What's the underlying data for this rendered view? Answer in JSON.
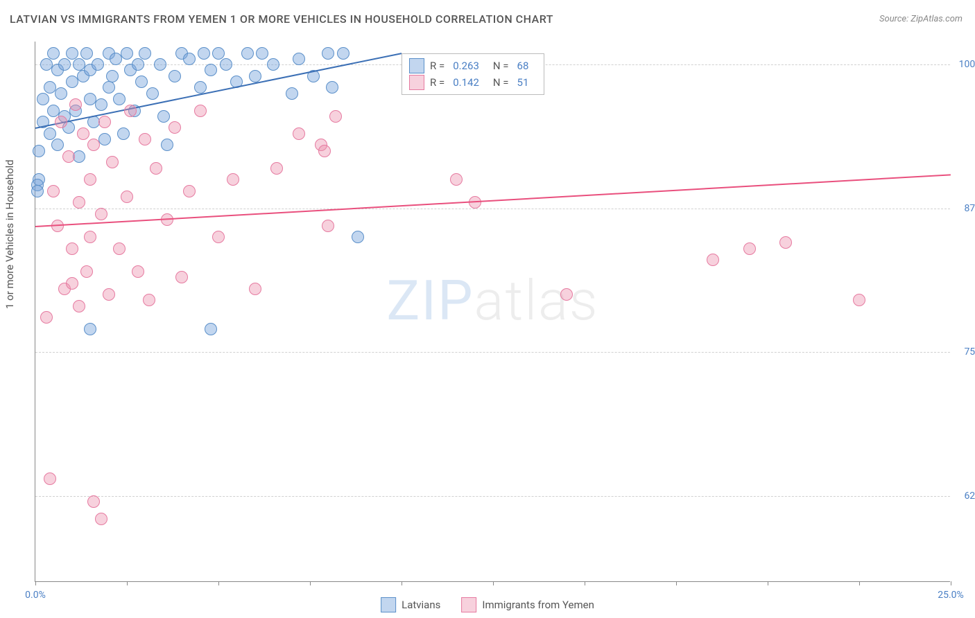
{
  "title": "LATVIAN VS IMMIGRANTS FROM YEMEN 1 OR MORE VEHICLES IN HOUSEHOLD CORRELATION CHART",
  "source": "Source: ZipAtlas.com",
  "y_axis_label": "1 or more Vehicles in Household",
  "watermark": {
    "part1": "ZIP",
    "part2": "atlas"
  },
  "chart": {
    "type": "scatter",
    "background_color": "#ffffff",
    "grid_color": "#d0d0d0",
    "axis_color": "#888888",
    "tick_label_color": "#4a7fc4",
    "text_color": "#555555",
    "xlim": [
      0,
      25
    ],
    "ylim": [
      55,
      102
    ],
    "y_ticks": [
      62.5,
      75.0,
      87.5,
      100.0
    ],
    "y_tick_labels": [
      "62.5%",
      "75.0%",
      "87.5%",
      "100.0%"
    ],
    "x_ticks": [
      0,
      2.5,
      5,
      7.5,
      10,
      12.5,
      15,
      17.5,
      20,
      22.5,
      25
    ],
    "x_tick_labels_show": {
      "0": "0.0%",
      "25": "25.0%"
    },
    "point_radius": 9,
    "series": [
      {
        "name": "Latvians",
        "color_fill": "rgba(120,165,220,0.45)",
        "color_stroke": "#5a8fc9",
        "r_value": "0.263",
        "n_value": "68",
        "trend": {
          "x1": 0,
          "y1": 94.5,
          "x2": 10,
          "y2": 101,
          "color": "#3b6fb5"
        },
        "points": [
          [
            0.1,
            92.5
          ],
          [
            0.1,
            90
          ],
          [
            0.2,
            97
          ],
          [
            0.2,
            95
          ],
          [
            0.3,
            100
          ],
          [
            0.4,
            98
          ],
          [
            0.4,
            94
          ],
          [
            0.5,
            101
          ],
          [
            0.5,
            96
          ],
          [
            0.6,
            93
          ],
          [
            0.6,
            99.5
          ],
          [
            0.7,
            97.5
          ],
          [
            0.8,
            100
          ],
          [
            0.8,
            95.5
          ],
          [
            0.9,
            94.5
          ],
          [
            1.0,
            101
          ],
          [
            1.0,
            98.5
          ],
          [
            1.1,
            96
          ],
          [
            1.2,
            100
          ],
          [
            1.2,
            92
          ],
          [
            1.3,
            99
          ],
          [
            1.4,
            101
          ],
          [
            1.5,
            97
          ],
          [
            1.5,
            99.5
          ],
          [
            1.6,
            95
          ],
          [
            1.7,
            100
          ],
          [
            1.8,
            96.5
          ],
          [
            1.9,
            93.5
          ],
          [
            2.0,
            101
          ],
          [
            2.0,
            98
          ],
          [
            2.1,
            99
          ],
          [
            2.2,
            100.5
          ],
          [
            2.3,
            97
          ],
          [
            2.4,
            94
          ],
          [
            2.5,
            101
          ],
          [
            2.6,
            99.5
          ],
          [
            2.7,
            96
          ],
          [
            2.8,
            100
          ],
          [
            2.9,
            98.5
          ],
          [
            3.0,
            101
          ],
          [
            3.2,
            97.5
          ],
          [
            3.4,
            100
          ],
          [
            3.5,
            95.5
          ],
          [
            3.6,
            93
          ],
          [
            3.8,
            99
          ],
          [
            4.0,
            101
          ],
          [
            4.2,
            100.5
          ],
          [
            4.5,
            98
          ],
          [
            4.6,
            101
          ],
          [
            4.8,
            99.5
          ],
          [
            5.0,
            101
          ],
          [
            5.2,
            100
          ],
          [
            5.5,
            98.5
          ],
          [
            5.8,
            101
          ],
          [
            6.0,
            99
          ],
          [
            6.2,
            101
          ],
          [
            6.5,
            100
          ],
          [
            7.0,
            97.5
          ],
          [
            7.2,
            100.5
          ],
          [
            7.6,
            99
          ],
          [
            8.0,
            101
          ],
          [
            8.1,
            98
          ],
          [
            8.4,
            101
          ],
          [
            1.5,
            77
          ],
          [
            4.8,
            77
          ],
          [
            8.8,
            85
          ],
          [
            0.05,
            89.5
          ],
          [
            0.05,
            89
          ]
        ]
      },
      {
        "name": "Immigrants from Yemen",
        "color_fill": "rgba(235,140,170,0.40)",
        "color_stroke": "#e67aa0",
        "r_value": "0.142",
        "n_value": "51",
        "trend": {
          "x1": 0,
          "y1": 86,
          "x2": 25,
          "y2": 90.5,
          "color": "#e94f7d"
        },
        "points": [
          [
            0.3,
            78
          ],
          [
            0.4,
            64
          ],
          [
            0.5,
            89
          ],
          [
            0.6,
            86
          ],
          [
            0.7,
            95
          ],
          [
            0.8,
            80.5
          ],
          [
            0.9,
            92
          ],
          [
            1.0,
            84
          ],
          [
            1.0,
            81
          ],
          [
            1.1,
            96.5
          ],
          [
            1.2,
            88
          ],
          [
            1.2,
            79
          ],
          [
            1.3,
            94
          ],
          [
            1.4,
            82
          ],
          [
            1.5,
            90
          ],
          [
            1.5,
            85
          ],
          [
            1.6,
            62
          ],
          [
            1.6,
            93
          ],
          [
            1.8,
            87
          ],
          [
            1.8,
            60.5
          ],
          [
            1.9,
            95
          ],
          [
            2.0,
            80
          ],
          [
            2.1,
            91.5
          ],
          [
            2.3,
            84
          ],
          [
            2.5,
            88.5
          ],
          [
            2.6,
            96
          ],
          [
            2.8,
            82
          ],
          [
            3.0,
            93.5
          ],
          [
            3.1,
            79.5
          ],
          [
            3.3,
            91
          ],
          [
            3.6,
            86.5
          ],
          [
            3.8,
            94.5
          ],
          [
            4.0,
            81.5
          ],
          [
            4.2,
            89
          ],
          [
            4.5,
            96
          ],
          [
            5.0,
            85
          ],
          [
            5.4,
            90
          ],
          [
            6.0,
            80.5
          ],
          [
            6.6,
            91
          ],
          [
            7.2,
            94
          ],
          [
            7.8,
            93
          ],
          [
            8.0,
            86
          ],
          [
            8.2,
            95.5
          ],
          [
            7.9,
            92.5
          ],
          [
            12.0,
            88
          ],
          [
            11.5,
            90
          ],
          [
            14.5,
            80
          ],
          [
            18.5,
            83
          ],
          [
            20.5,
            84.5
          ],
          [
            19.5,
            84
          ],
          [
            22.5,
            79.5
          ]
        ]
      }
    ]
  },
  "legend_top": {
    "r_label": "R =",
    "n_label": "N ="
  },
  "legend_bottom": {
    "items": [
      "Latvians",
      "Immigrants from Yemen"
    ]
  }
}
